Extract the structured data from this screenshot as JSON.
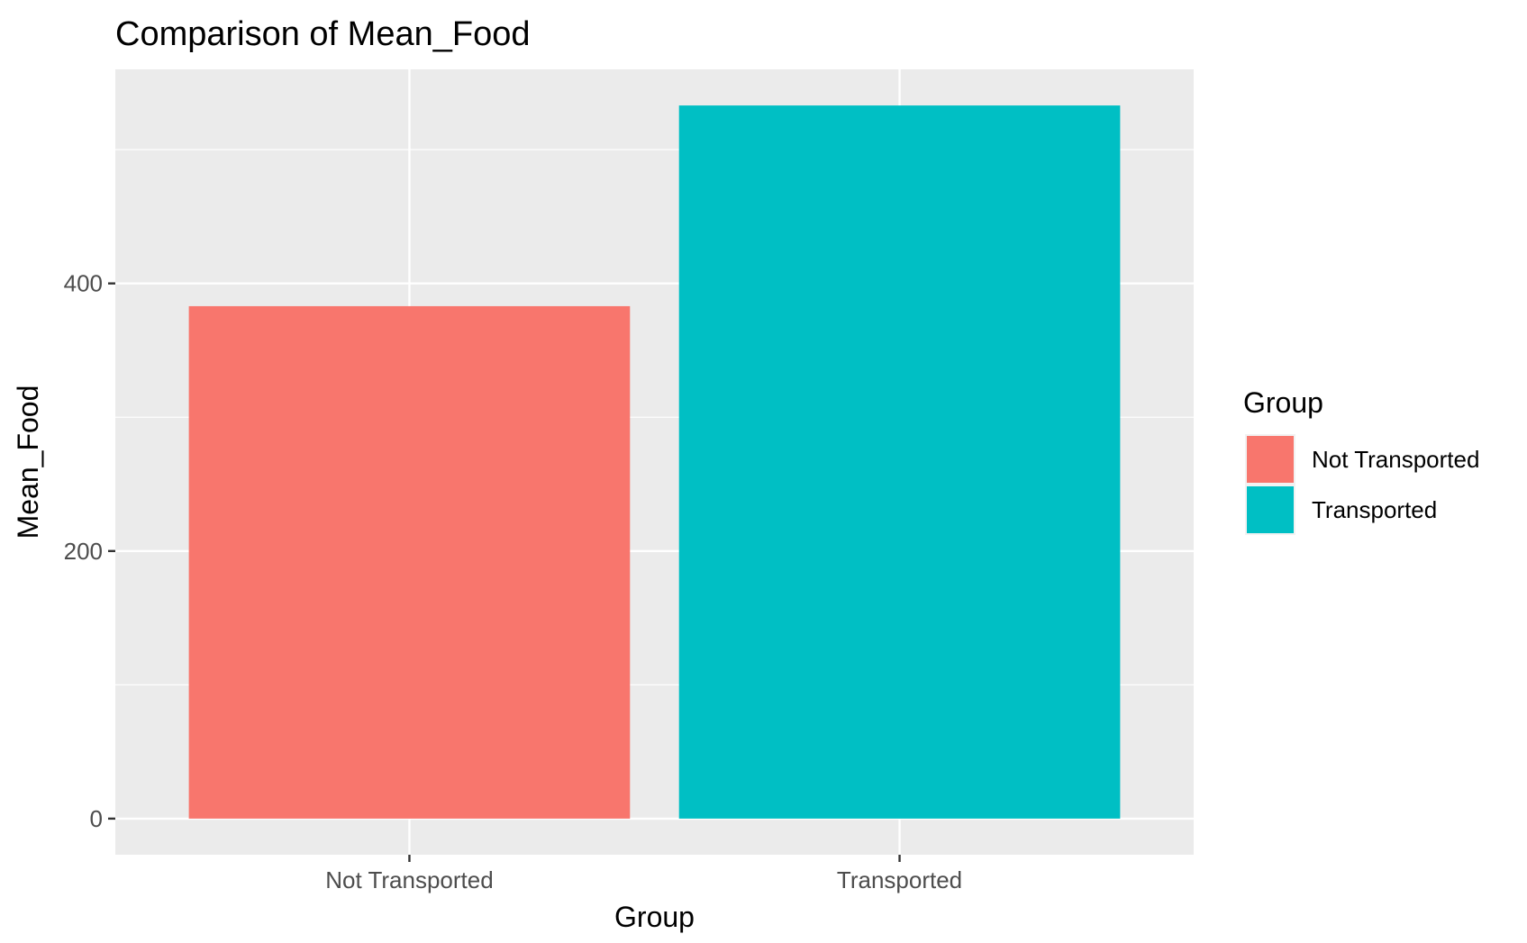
{
  "chart_data": {
    "type": "bar",
    "title": "Comparison of Mean_Food",
    "xlabel": "Group",
    "ylabel": "Mean_Food",
    "categories": [
      "Not Transported",
      "Transported"
    ],
    "values": [
      383,
      533
    ],
    "colors": [
      "#F8766D",
      "#00BFC4"
    ],
    "ylim": [
      -27,
      560
    ],
    "yticks": [
      0,
      200,
      400
    ],
    "ytick_labels": [
      "0",
      "200",
      "400"
    ],
    "grid": true,
    "legend": {
      "title": "Group",
      "placement": "right",
      "items": [
        "Not Transported",
        "Transported"
      ]
    },
    "panel_background": "#EBEBEB",
    "gridline_color": "#FFFFFF"
  }
}
